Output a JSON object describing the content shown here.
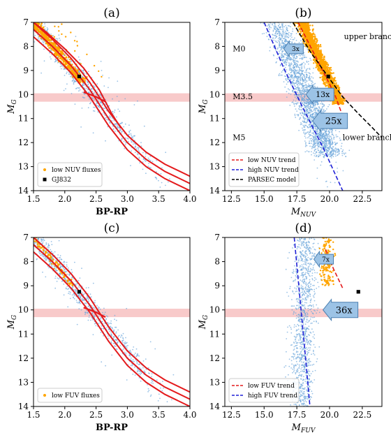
{
  "colors": {
    "orange": "#ffa500",
    "blue": "#6fa8dc",
    "red": "#e41a1c",
    "band": "#f4a6a6",
    "arrow_fill": "#9cc3e6",
    "arrow_stroke": "#4a7fb0"
  },
  "chart_data": [
    {
      "id": "a",
      "type": "scatter",
      "title": "(a)",
      "xlabel": "BP-RP",
      "ylabel": "M_G",
      "xlim": [
        1.5,
        4.0
      ],
      "ylim": [
        14,
        7
      ],
      "xticks": [
        "1.5",
        "2.0",
        "2.5",
        "3.0",
        "3.5",
        "4.0"
      ],
      "yticks": [
        "7",
        "8",
        "9",
        "10",
        "11",
        "12",
        "13",
        "14"
      ],
      "band": [
        9.95,
        10.3
      ],
      "legend": {
        "position": "lower-left",
        "entries": [
          {
            "label": "low NUV fluxes",
            "marker": "dot",
            "color": "#ffa500"
          },
          {
            "label": "GJ832",
            "marker": "square",
            "color": "#000000"
          }
        ]
      },
      "special_points": [
        {
          "name": "GJ832",
          "x": 2.23,
          "y": 9.25
        }
      ],
      "sequence_lines": [
        {
          "x": [
            1.5,
            1.8,
            2.1,
            2.4,
            2.7,
            3.0,
            3.3,
            3.6,
            4.0
          ],
          "y": [
            7.0,
            7.7,
            8.5,
            9.5,
            10.7,
            11.7,
            12.4,
            12.9,
            13.4
          ]
        },
        {
          "x": [
            1.5,
            1.8,
            2.1,
            2.4,
            2.7,
            3.0,
            3.3,
            3.6,
            4.0
          ],
          "y": [
            7.3,
            8.0,
            8.8,
            9.8,
            11.0,
            12.0,
            12.7,
            13.2,
            13.7
          ]
        },
        {
          "x": [
            1.5,
            1.8,
            2.1,
            2.4,
            2.7,
            3.0,
            3.3,
            3.6,
            4.0
          ],
          "y": [
            7.6,
            8.3,
            9.1,
            10.1,
            11.3,
            12.3,
            13.0,
            13.5,
            14.0
          ]
        },
        {
          "x": [
            1.5,
            1.7,
            2.0,
            2.3,
            2.55,
            2.75,
            2.9
          ],
          "y": [
            7.0,
            7.4,
            8.1,
            8.9,
            9.8,
            10.8,
            11.4
          ]
        }
      ],
      "connector_line": {
        "x": [
          2.3,
          2.5,
          2.65
        ],
        "y": [
          9.9,
          10.1,
          10.3
        ]
      },
      "annotations": []
    },
    {
      "id": "b",
      "type": "scatter",
      "title": "(b)",
      "xlabel": "M_NUV",
      "ylabel": "M_G",
      "xlim": [
        12,
        24
      ],
      "ylim": [
        14,
        7
      ],
      "xticks": [
        "12.5",
        "15.0",
        "17.5",
        "20.0",
        "22.5"
      ],
      "yticks": [
        "7",
        "8",
        "9",
        "10",
        "11",
        "12",
        "13",
        "14"
      ],
      "band": [
        9.95,
        10.3
      ],
      "legend": {
        "position": "lower-left",
        "entries": [
          {
            "label": "low NUV trend",
            "style": "dashed",
            "color": "#e41a1c"
          },
          {
            "label": "high NUV trend",
            "style": "dashed",
            "color": "#1f1fd6"
          },
          {
            "label": "PARSEC model",
            "style": "dashed",
            "color": "#000000"
          }
        ]
      },
      "special_points": [
        {
          "name": "GJ832",
          "x": 19.9,
          "y": 9.25
        }
      ],
      "trend_lines": [
        {
          "name": "low NUV trend",
          "color": "#e41a1c",
          "x": [
            17.6,
            19.0,
            20.4,
            21.0
          ],
          "y": [
            7.0,
            8.5,
            10.0,
            10.9
          ]
        },
        {
          "name": "high NUV trend",
          "color": "#1f1fd6",
          "x": [
            15.0,
            16.5,
            18.0,
            19.5,
            21.0
          ],
          "y": [
            7.0,
            8.9,
            10.6,
            12.2,
            14.0
          ]
        },
        {
          "name": "PARSEC model",
          "color": "#000000",
          "x": [
            17.2,
            18.5,
            19.8,
            21.0,
            22.2,
            23.3,
            24.0
          ],
          "y": [
            7.0,
            8.2,
            9.2,
            10.1,
            10.8,
            11.4,
            11.8
          ]
        }
      ],
      "text_labels": [
        {
          "text": "upper branch",
          "x": 21.1,
          "y": 7.7
        },
        {
          "text": "M0",
          "x": 12.6,
          "y": 8.2
        },
        {
          "text": "M3.5",
          "x": 12.6,
          "y": 10.2
        },
        {
          "text": "lower branch",
          "x": 21.0,
          "y": 11.9
        },
        {
          "text": "M5",
          "x": 12.6,
          "y": 11.9
        }
      ],
      "arrows": [
        {
          "text": "3x",
          "x": 16.5,
          "y": 8.1,
          "size": "small"
        },
        {
          "text": "13x",
          "x": 18.2,
          "y": 10.0,
          "size": "medium"
        },
        {
          "text": "25x",
          "x": 18.7,
          "y": 11.1,
          "size": "large"
        }
      ]
    },
    {
      "id": "c",
      "type": "scatter",
      "title": "(c)",
      "xlabel": "BP-RP",
      "ylabel": "M_G",
      "xlim": [
        1.5,
        4.0
      ],
      "ylim": [
        14,
        7
      ],
      "xticks": [
        "1.5",
        "2.0",
        "2.5",
        "3.0",
        "3.5",
        "4.0"
      ],
      "yticks": [
        "7",
        "8",
        "9",
        "10",
        "11",
        "12",
        "13",
        "14"
      ],
      "band": [
        9.95,
        10.3
      ],
      "legend": {
        "position": "lower-left",
        "entries": [
          {
            "label": "low FUV fluxes",
            "marker": "dot",
            "color": "#ffa500"
          }
        ]
      },
      "special_points": [
        {
          "name": "GJ832",
          "x": 2.23,
          "y": 9.25
        }
      ],
      "sequence_lines": [
        {
          "x": [
            1.5,
            1.8,
            2.1,
            2.4,
            2.7,
            3.0,
            3.3,
            3.6,
            4.0
          ],
          "y": [
            7.0,
            7.7,
            8.5,
            9.5,
            10.7,
            11.7,
            12.4,
            12.9,
            13.4
          ]
        },
        {
          "x": [
            1.5,
            1.8,
            2.1,
            2.4,
            2.7,
            3.0,
            3.3,
            3.6,
            4.0
          ],
          "y": [
            7.3,
            8.0,
            8.8,
            9.8,
            11.0,
            12.0,
            12.7,
            13.2,
            13.7
          ]
        },
        {
          "x": [
            1.5,
            1.8,
            2.1,
            2.4,
            2.7,
            3.0,
            3.3,
            3.6,
            4.0
          ],
          "y": [
            7.6,
            8.3,
            9.1,
            10.1,
            11.3,
            12.3,
            13.0,
            13.5,
            14.0
          ]
        }
      ],
      "connector_line": {
        "x": [
          2.3,
          2.5,
          2.65
        ],
        "y": [
          9.9,
          10.1,
          10.3
        ]
      },
      "annotations": []
    },
    {
      "id": "d",
      "type": "scatter",
      "title": "(d)",
      "xlabel": "M_FUV",
      "ylabel": "M_G",
      "xlim": [
        12,
        24
      ],
      "ylim": [
        14,
        7
      ],
      "xticks": [
        "12.5",
        "15.0",
        "17.5",
        "20.0",
        "22.5"
      ],
      "yticks": [
        "7",
        "8",
        "9",
        "10",
        "11",
        "12",
        "13",
        "14"
      ],
      "band": [
        9.95,
        10.3
      ],
      "legend": {
        "position": "lower-left",
        "entries": [
          {
            "label": "low FUV trend",
            "style": "dashed",
            "color": "#e41a1c"
          },
          {
            "label": "high FUV trend",
            "style": "dashed",
            "color": "#1f1fd6"
          }
        ]
      },
      "special_points": [
        {
          "name": "GJ832",
          "x": 22.2,
          "y": 9.25
        }
      ],
      "trend_lines": [
        {
          "name": "low FUV trend",
          "color": "#e41a1c",
          "x": [
            19.7,
            20.3,
            21.0
          ],
          "y": [
            7.5,
            8.3,
            9.1
          ]
        },
        {
          "name": "high FUV trend",
          "color": "#1f1fd6",
          "x": [
            17.3,
            17.7,
            18.1,
            18.5
          ],
          "y": [
            7.0,
            9.3,
            11.6,
            14.0
          ]
        }
      ],
      "text_labels": [],
      "arrows": [
        {
          "text": "7x",
          "x": 18.8,
          "y": 7.9,
          "size": "small"
        },
        {
          "text": "36x",
          "x": 19.5,
          "y": 10.0,
          "size": "large"
        }
      ]
    }
  ]
}
